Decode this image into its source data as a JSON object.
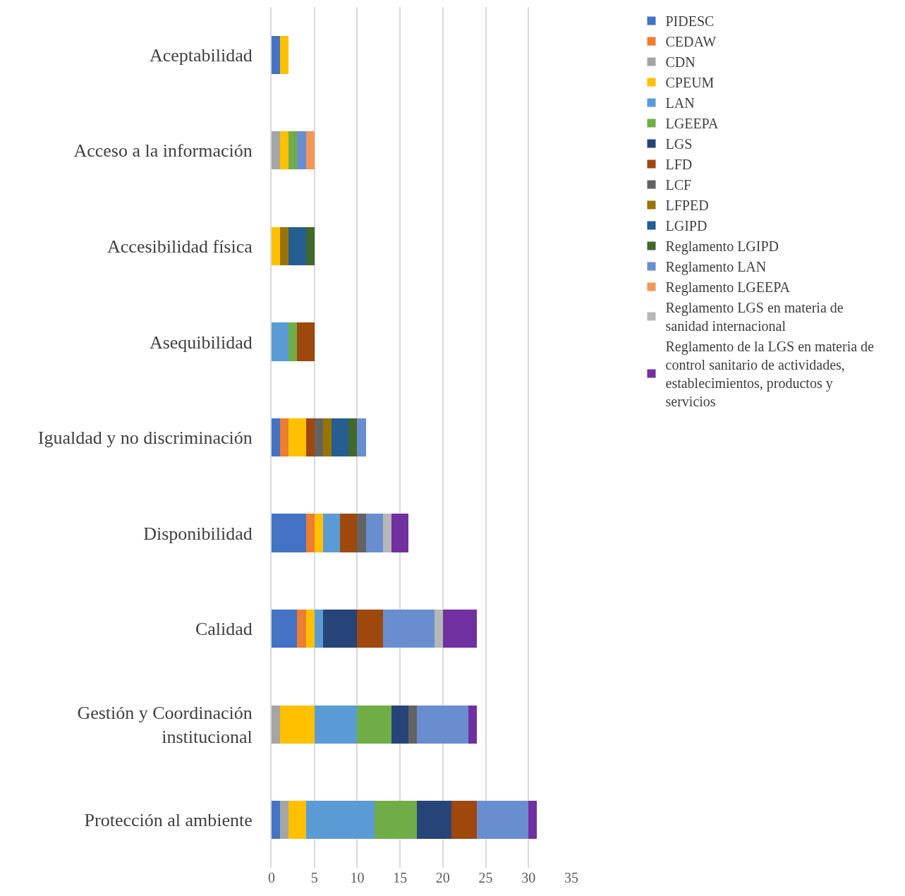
{
  "chart_data": {
    "type": "bar",
    "orientation": "horizontal",
    "stacked": true,
    "categories": [
      "Aceptabilidad",
      "Acceso a la información",
      "Accesibilidad física",
      "Asequibilidad",
      "Igualdad y no discriminación",
      "Disponibilidad",
      "Calidad",
      "Gestión y Coordinación institucional",
      "Protección al ambiente"
    ],
    "series": [
      {
        "name": "PIDESC",
        "color": "#4472c4",
        "values": [
          1,
          null,
          null,
          null,
          1,
          4,
          3,
          null,
          1
        ]
      },
      {
        "name": "CEDAW",
        "color": "#ed7d31",
        "values": [
          null,
          null,
          null,
          null,
          1,
          1,
          1,
          null,
          null
        ]
      },
      {
        "name": "CDN",
        "color": "#a5a5a5",
        "values": [
          null,
          1,
          null,
          null,
          null,
          null,
          null,
          1,
          1
        ]
      },
      {
        "name": "CPEUM",
        "color": "#ffc000",
        "values": [
          1,
          1,
          1,
          null,
          2,
          1,
          1,
          4,
          2
        ]
      },
      {
        "name": "LAN",
        "color": "#5b9bd5",
        "values": [
          null,
          null,
          null,
          2,
          null,
          2,
          1,
          5,
          8
        ]
      },
      {
        "name": "LGEEPA",
        "color": "#70ad47",
        "values": [
          null,
          1,
          null,
          1,
          null,
          null,
          null,
          4,
          5
        ]
      },
      {
        "name": "LGS",
        "color": "#264478",
        "values": [
          null,
          null,
          null,
          null,
          null,
          null,
          4,
          2,
          4
        ]
      },
      {
        "name": "LFD",
        "color": "#9e480e",
        "values": [
          null,
          null,
          null,
          2,
          1,
          2,
          3,
          null,
          3
        ]
      },
      {
        "name": "LCF",
        "color": "#636363",
        "values": [
          null,
          null,
          null,
          null,
          1,
          1,
          null,
          1,
          null
        ]
      },
      {
        "name": "LFPED",
        "color": "#997300",
        "values": [
          null,
          null,
          1,
          null,
          1,
          null,
          null,
          null,
          null
        ]
      },
      {
        "name": "LGIPD",
        "color": "#255e91",
        "values": [
          null,
          null,
          2,
          null,
          2,
          null,
          null,
          null,
          null
        ]
      },
      {
        "name": "Reglamento LGIPD",
        "color": "#43682b",
        "values": [
          null,
          null,
          1,
          null,
          1,
          null,
          null,
          null,
          null
        ]
      },
      {
        "name": "Reglamento LAN",
        "color": "#698ed0",
        "values": [
          null,
          1,
          null,
          null,
          1,
          2,
          6,
          6,
          6
        ]
      },
      {
        "name": "Reglamento LGEEPA",
        "color": "#f1975a",
        "values": [
          null,
          1,
          null,
          null,
          null,
          null,
          null,
          null,
          null
        ]
      },
      {
        "name": "Reglamento LGS en materia de sanidad internacional",
        "color": "#b7b7b7",
        "values": [
          null,
          null,
          null,
          null,
          null,
          1,
          1,
          null,
          null
        ]
      },
      {
        "name": "Reglamento de la LGS en materia de control sanitario de actividades, establecimientos, productos y servicios",
        "color": "#7030a0",
        "values": [
          null,
          null,
          null,
          null,
          null,
          2,
          4,
          1,
          1
        ]
      }
    ],
    "xlim": [
      0,
      35
    ],
    "xticks": [
      0,
      5,
      10,
      15,
      20,
      25,
      30,
      35
    ],
    "grid": "x",
    "legend": "right"
  }
}
